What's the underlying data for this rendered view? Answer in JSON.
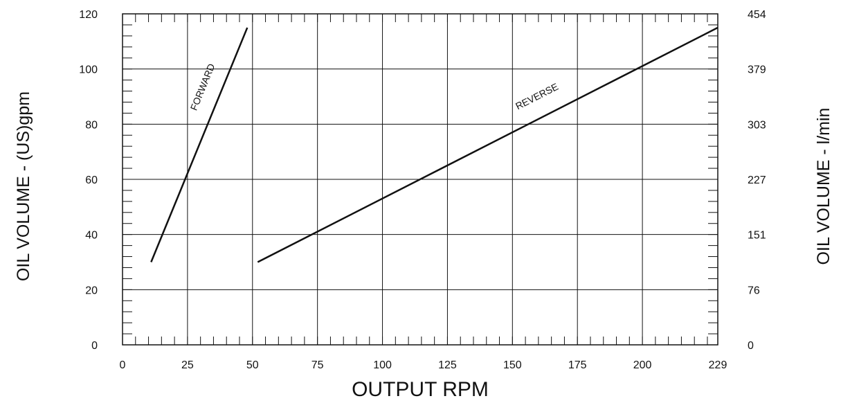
{
  "chart_data": {
    "type": "line",
    "xlabel": "OUTPUT RPM",
    "ylabel": "OIL VOLUME - (US)gpm",
    "y2label": "OIL VOLUME - l/min",
    "xlim": [
      0,
      229
    ],
    "ylim": [
      0,
      120
    ],
    "x_ticks": [
      0,
      25,
      50,
      75,
      100,
      125,
      150,
      175,
      200,
      229
    ],
    "y_ticks": [
      0,
      20,
      40,
      60,
      80,
      100,
      120
    ],
    "y2_ticks": [
      {
        "at": 0,
        "label": "0"
      },
      {
        "at": 20,
        "label": "76"
      },
      {
        "at": 40,
        "label": "151"
      },
      {
        "at": 60,
        "label": "227"
      },
      {
        "at": 80,
        "label": "303"
      },
      {
        "at": 100,
        "label": "379"
      },
      {
        "at": 120,
        "label": "454"
      }
    ],
    "grid": true,
    "series": [
      {
        "name": "FORWARD",
        "points": [
          {
            "x": 11,
            "y": 30
          },
          {
            "x": 48,
            "y": 115
          }
        ],
        "label_at": {
          "x": 32,
          "y": 93
        }
      },
      {
        "name": "REVERSE",
        "points": [
          {
            "x": 52,
            "y": 30
          },
          {
            "x": 229,
            "y": 115
          }
        ],
        "label_at": {
          "x": 160,
          "y": 89
        }
      }
    ]
  }
}
